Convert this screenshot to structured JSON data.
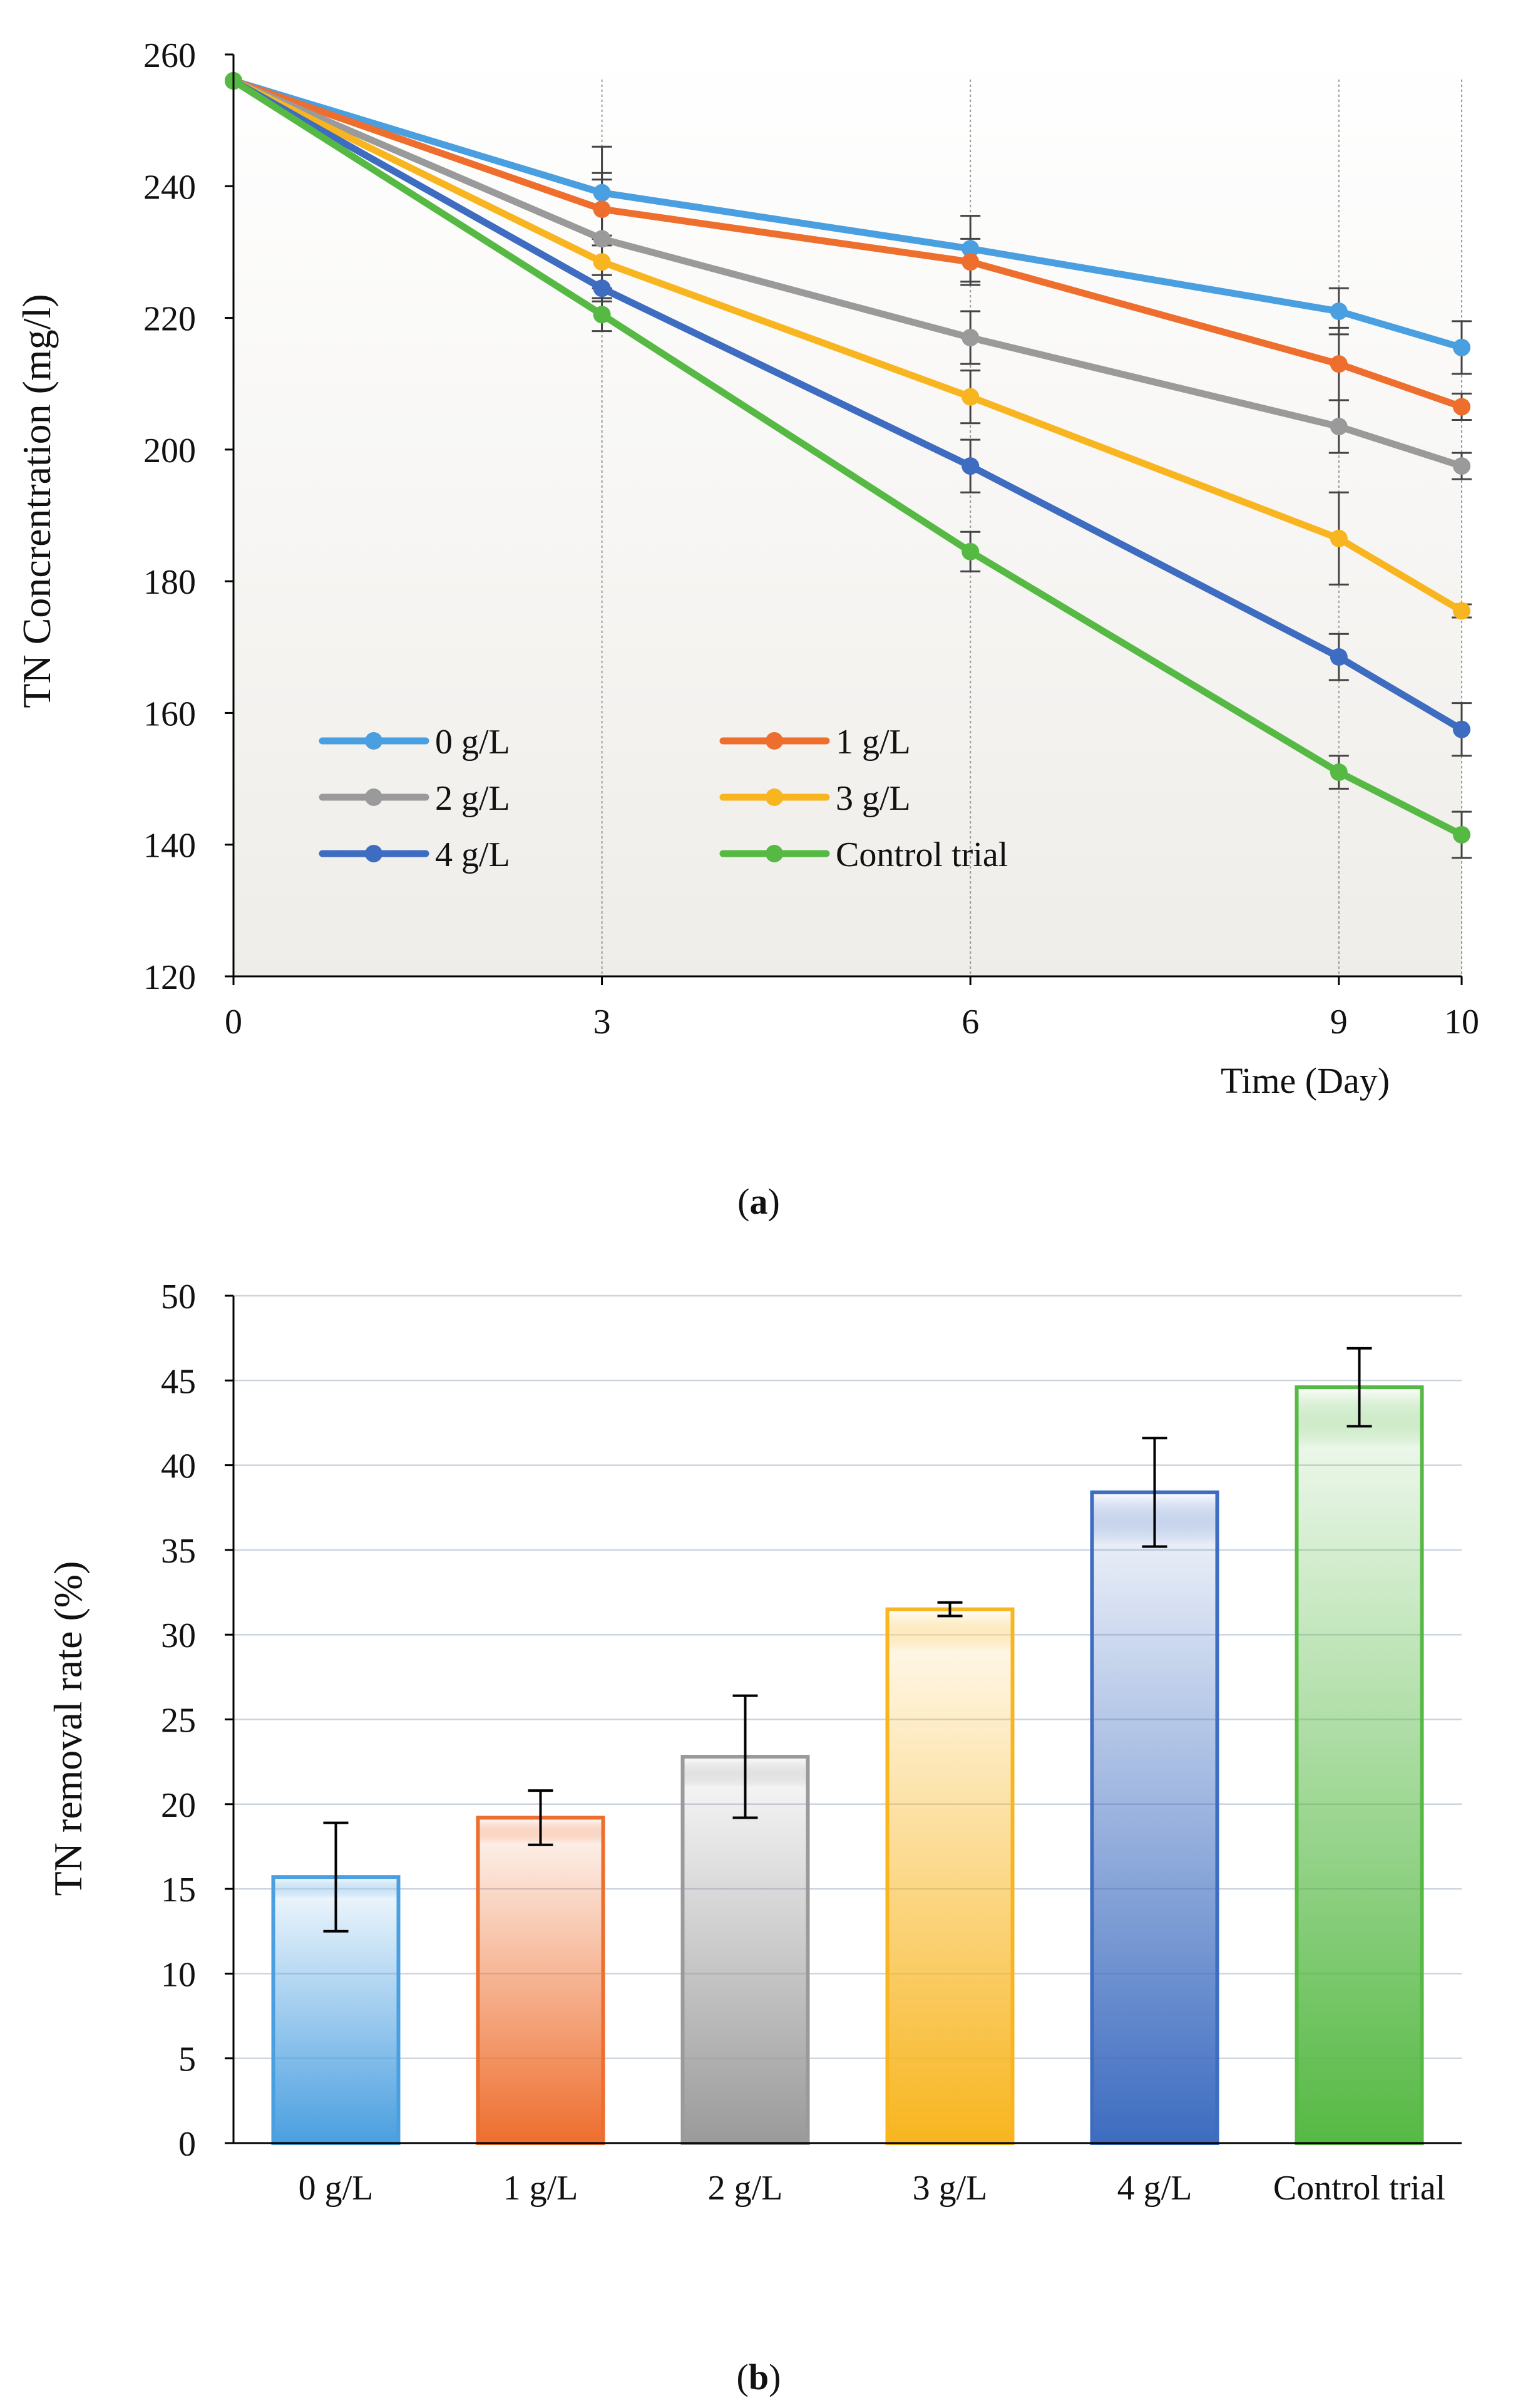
{
  "colors": {
    "0 g/L": "#4a9fe0",
    "1 g/L": "#ee6e2e",
    "2 g/L": "#9a9a9a",
    "3 g/L": "#f8b51f",
    "4 g/L": "#3d6cc0",
    "Control trial": "#56b944"
  },
  "chart_data": [
    {
      "type": "line",
      "panel_label": "a",
      "xlabel": "Time (Day)",
      "ylabel": "TN Concrentration (mg/l)",
      "x": [
        0,
        3,
        6,
        9,
        10
      ],
      "xticks": [
        "0",
        "3",
        "6",
        "9",
        "10"
      ],
      "ylim": [
        120,
        260
      ],
      "yticks": [
        "120",
        "140",
        "160",
        "180",
        "200",
        "220",
        "240",
        "260"
      ],
      "grid": false,
      "legend_position": "bottom-left",
      "series": [
        {
          "name": "0 g/L",
          "values": [
            256,
            239,
            230.5,
            221,
            215.5
          ],
          "errors": [
            0,
            7,
            5,
            3.5,
            4
          ]
        },
        {
          "name": "1 g/L",
          "values": [
            256,
            236.5,
            228.5,
            213,
            206.5
          ],
          "errors": [
            0,
            5.5,
            3.5,
            5.5,
            2
          ]
        },
        {
          "name": "2 g/L",
          "values": [
            256,
            232,
            217,
            203.5,
            197.5
          ],
          "errors": [
            0,
            9,
            4,
            4,
            2
          ]
        },
        {
          "name": "3 g/L",
          "values": [
            256,
            228.5,
            208,
            186.5,
            175.5
          ],
          "errors": [
            0,
            4,
            4,
            7,
            1
          ]
        },
        {
          "name": "4 g/L",
          "values": [
            256,
            224.5,
            197.5,
            168.5,
            157.5
          ],
          "errors": [
            0,
            2,
            4,
            3.5,
            4
          ]
        },
        {
          "name": "Control trial",
          "values": [
            256,
            220.5,
            184.5,
            151,
            141.5
          ],
          "errors": [
            0,
            2.5,
            3,
            2.5,
            3.5
          ]
        }
      ]
    },
    {
      "type": "bar",
      "panel_label": "b",
      "xlabel": "",
      "ylabel": "TN removal rate (%)",
      "categories": [
        "0 g/L",
        "1 g/L",
        "2 g/L",
        "3 g/L",
        "4 g/L",
        "Control trial"
      ],
      "values": [
        15.7,
        19.2,
        22.8,
        31.5,
        38.4,
        44.6
      ],
      "errors": [
        3.2,
        1.6,
        3.6,
        0.4,
        3.2,
        2.3
      ],
      "ylim": [
        0,
        50
      ],
      "yticks": [
        "0",
        "5",
        "10",
        "15",
        "20",
        "25",
        "30",
        "35",
        "40",
        "45",
        "50"
      ],
      "grid": true
    }
  ]
}
